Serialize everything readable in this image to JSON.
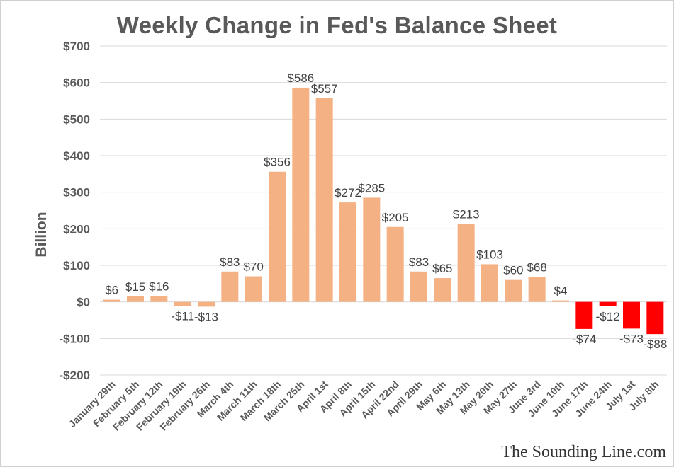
{
  "chart_data": {
    "type": "bar",
    "title": "Weekly Change in Fed's Balance Sheet",
    "ylabel": "Billion",
    "xlabel": "",
    "ylim": [
      -200,
      700
    ],
    "yticks": [
      700,
      600,
      500,
      400,
      300,
      200,
      100,
      0,
      -100,
      -200
    ],
    "ytick_labels": [
      "$700",
      "$600",
      "$500",
      "$400",
      "$300",
      "$200",
      "$100",
      "$0",
      "-$100",
      "-$200"
    ],
    "grid": true,
    "legend": "none",
    "categories": [
      "January 29th",
      "February 5th",
      "February 12th",
      "February 19th",
      "February 26th",
      "March 4th",
      "March 11th",
      "March 18th",
      "March 25th",
      "April 1st",
      "April 8th",
      "April 15th",
      "April 22nd",
      "April 29th",
      "May 6th",
      "May 13th",
      "May 20th",
      "May 27th",
      "June 3rd",
      "June 10th",
      "June 17th",
      "June 24th",
      "July 1st",
      "July 8th"
    ],
    "values": [
      6,
      15,
      16,
      -11,
      -13,
      83,
      70,
      356,
      586,
      557,
      272,
      285,
      205,
      83,
      65,
      213,
      103,
      60,
      68,
      4,
      -74,
      -12,
      -73,
      -88
    ],
    "data_labels": [
      "$6",
      "$15",
      "$16",
      "-$11",
      "-$13",
      "$83",
      "$70",
      "$356",
      "$586",
      "$557",
      "$272",
      "$285",
      "$205",
      "$83",
      "$65",
      "$213",
      "$103",
      "$60",
      "$68",
      "$4",
      "-$74",
      "-$12",
      "-$73",
      "-$88"
    ],
    "colors": {
      "early_bars": "#f4b183",
      "late_negative_bars": "#ff0000",
      "grid": "#d9d9d9"
    },
    "red_from_category": "June 17th"
  },
  "watermark": "The Sounding Line.com"
}
